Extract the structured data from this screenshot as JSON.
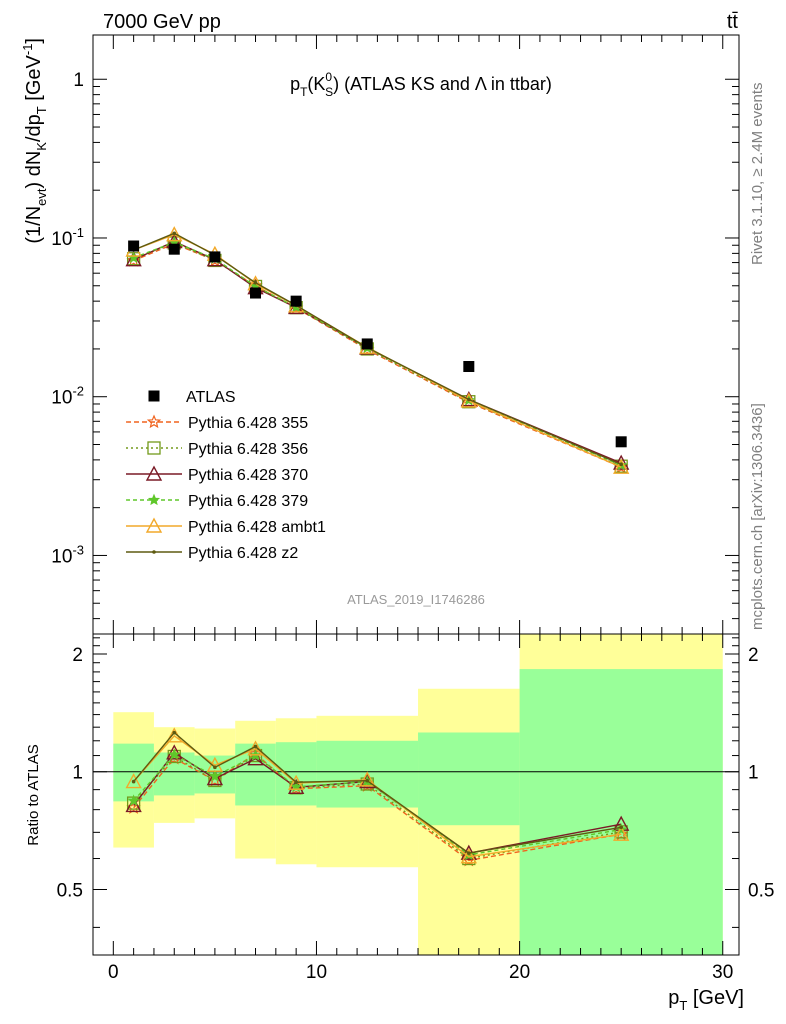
{
  "header": {
    "left": "7000 GeV pp",
    "right": "tt̄"
  },
  "side": {
    "rivet": "Rivet 3.1.10, ≥ 2.4M events",
    "mcplots": "mcplots.cern.ch [arXiv:1306.3436]"
  },
  "chart_data": {
    "type": "scatter",
    "title": "p_T(K_S^0) (ATLAS KS and Λ in ttbar)",
    "analysis_id": "ATLAS_2019_I1746286",
    "xlabel": "p_T [GeV]",
    "ylabel": "(1/N_evt) dN_K/dp_T [GeV^-1]",
    "ratio_ylabel": "Ratio to ATLAS",
    "xlim": [
      -1,
      30.8
    ],
    "ylim": [
      0.00032,
      1.9
    ],
    "yscale": "log",
    "ratio_ylim": [
      0.34,
      2.25
    ],
    "x_ticks": [
      "0",
      "10",
      "20",
      "30"
    ],
    "y_ticks": [
      "1",
      "10^-1",
      "10^-2",
      "10^-3"
    ],
    "ratio_ticks": [
      "0.5",
      "1",
      "2"
    ],
    "legend_position": "lower-left",
    "x": [
      1,
      3,
      5,
      7,
      9,
      12.5,
      17.5,
      25
    ],
    "bins": [
      [
        0,
        2
      ],
      [
        2,
        4
      ],
      [
        4,
        6
      ],
      [
        6,
        8
      ],
      [
        8,
        10
      ],
      [
        10,
        15
      ],
      [
        15,
        20
      ],
      [
        20,
        30
      ]
    ],
    "data": {
      "name": "ATLAS",
      "values": [
        0.089,
        0.085,
        0.076,
        0.045,
        0.04,
        0.0215,
        0.0155,
        0.0052
      ]
    },
    "bands": {
      "inner": [
        [
          0.84,
          1.18
        ],
        [
          0.87,
          1.12
        ],
        [
          0.88,
          1.1
        ],
        [
          0.82,
          1.18
        ],
        [
          0.82,
          1.19
        ],
        [
          0.81,
          1.2
        ],
        [
          0.73,
          1.26
        ],
        [
          0.26,
          1.83
        ]
      ],
      "outer": [
        [
          0.64,
          1.42
        ],
        [
          0.74,
          1.3
        ],
        [
          0.76,
          1.29
        ],
        [
          0.6,
          1.35
        ],
        [
          0.58,
          1.37
        ],
        [
          0.57,
          1.39
        ],
        [
          0.26,
          1.63
        ],
        [
          0.26,
          2.8
        ]
      ]
    },
    "series": [
      {
        "name": "Pythia 6.428 355",
        "color": "#f0631e",
        "dash": "5,3",
        "marker": "star",
        "values": [
          0.072,
          0.092,
          0.0722,
          0.05,
          0.0362,
          0.0198,
          0.0092,
          0.0036
        ]
      },
      {
        "name": "Pythia 6.428 356",
        "color": "#739a1b",
        "dash": "2,3",
        "marker": "square",
        "values": [
          0.074,
          0.093,
          0.0722,
          0.0495,
          0.0364,
          0.02,
          0.0093,
          0.00365
        ]
      },
      {
        "name": "Pythia 6.428 370",
        "color": "#7a1a26",
        "dash": "",
        "marker": "triangle",
        "values": [
          0.073,
          0.095,
          0.073,
          0.0486,
          0.0365,
          0.0203,
          0.0096,
          0.00382
        ]
      },
      {
        "name": "Pythia 6.428 379",
        "color": "#5fc72a",
        "dash": "4,3",
        "marker": "smallstar",
        "values": [
          0.075,
          0.094,
          0.074,
          0.0495,
          0.0366,
          0.0203,
          0.0095,
          0.0037
        ]
      },
      {
        "name": "Pythia 6.428 ambt1",
        "color": "#f2a92a",
        "dash": "",
        "marker": "triangle",
        "values": [
          0.084,
          0.105,
          0.079,
          0.0515,
          0.0374,
          0.0205,
          0.0094,
          0.0036
        ]
      },
      {
        "name": "Pythia 6.428 z2",
        "color": "#5e5a10",
        "dash": "",
        "marker": "dot",
        "values": [
          0.084,
          0.107,
          0.078,
          0.0522,
          0.0376,
          0.0204,
          0.0096,
          0.00375
        ]
      }
    ]
  }
}
